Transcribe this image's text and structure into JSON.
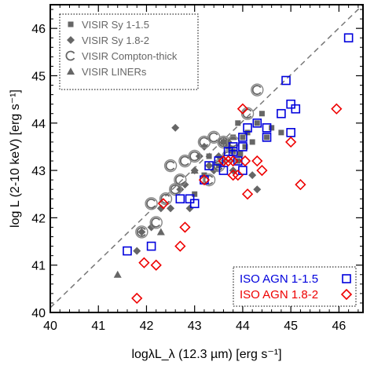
{
  "chart_data": {
    "type": "scatter",
    "title": "",
    "xlabel": "logλL_λ (12.3 µm) [erg s⁻¹]",
    "ylabel": "log L (2-10 keV) [erg s⁻¹]",
    "xlim": [
      40,
      46.5
    ],
    "ylim": [
      40,
      46.5
    ],
    "xticks": [
      "40",
      "41",
      "42",
      "43",
      "44",
      "45",
      "46"
    ],
    "yticks": [
      "40",
      "41",
      "42",
      "43",
      "44",
      "45",
      "46"
    ],
    "grid": false,
    "legends": [
      {
        "placement": "top-left",
        "entries": [
          "VISIR Sy 1-1.5",
          "VISIR Sy 1.8-2",
          "VISIR Compton-thick",
          "VISIR LINERs"
        ]
      },
      {
        "placement": "bottom-right",
        "entries": [
          "ISO AGN 1-1.5",
          "ISO AGN 1.8-2"
        ]
      }
    ],
    "colors": {
      "iso_type1": "#0000dd",
      "iso_type2": "#ee0000",
      "visir": "#666666",
      "fit_line": "#777777"
    },
    "fit_line": {
      "x": [
        40,
        46.5
      ],
      "y": [
        40.1,
        46.5
      ]
    },
    "series": [
      {
        "name": "VISIR Sy 1-1.5",
        "marker": "square",
        "points": [
          [
            43.0,
            42.5
          ],
          [
            43.2,
            42.9
          ],
          [
            43.3,
            43.3
          ],
          [
            43.5,
            43.1
          ],
          [
            43.6,
            43.6
          ],
          [
            43.7,
            43.5
          ],
          [
            43.8,
            43.4
          ],
          [
            43.9,
            43.2
          ],
          [
            44.1,
            43.8
          ],
          [
            44.2,
            43.6
          ],
          [
            44.3,
            44.0
          ],
          [
            44.4,
            44.2
          ],
          [
            44.6,
            43.9
          ],
          [
            44.8,
            43.8
          ],
          [
            44.5,
            43.7
          ],
          [
            44.0,
            43.7
          ],
          [
            43.8,
            43.7
          ],
          [
            43.9,
            44.0
          ],
          [
            44.05,
            43.5
          ],
          [
            43.95,
            43.35
          ]
        ]
      },
      {
        "name": "VISIR Sy 1.8-2",
        "marker": "diamond",
        "points": [
          [
            41.8,
            41.3
          ],
          [
            41.9,
            41.7
          ],
          [
            42.1,
            41.8
          ],
          [
            42.3,
            42.2
          ],
          [
            42.5,
            42.2
          ],
          [
            42.7,
            42.6
          ],
          [
            42.8,
            42.7
          ],
          [
            43.0,
            43.0
          ],
          [
            43.1,
            43.3
          ],
          [
            43.2,
            43.5
          ],
          [
            43.3,
            43.1
          ],
          [
            43.5,
            43.3
          ],
          [
            43.6,
            43.6
          ],
          [
            43.8,
            43.0
          ],
          [
            44.2,
            42.9
          ],
          [
            44.3,
            42.6
          ],
          [
            43.4,
            43.0
          ],
          [
            42.6,
            43.9
          ],
          [
            42.9,
            42.2
          ],
          [
            43.7,
            43.6
          ]
        ]
      },
      {
        "name": "VISIR Compton-thick",
        "marker": "C",
        "points": [
          [
            41.9,
            41.7
          ],
          [
            42.1,
            42.3
          ],
          [
            42.4,
            42.4
          ],
          [
            42.6,
            42.6
          ],
          [
            42.7,
            42.8
          ],
          [
            42.8,
            43.2
          ],
          [
            43.0,
            43.3
          ],
          [
            43.2,
            43.6
          ],
          [
            43.4,
            43.7
          ],
          [
            43.6,
            43.6
          ],
          [
            43.8,
            43.6
          ],
          [
            44.1,
            44.2
          ],
          [
            44.3,
            44.7
          ],
          [
            43.3,
            42.8
          ],
          [
            42.5,
            43.1
          ],
          [
            42.2,
            41.9
          ],
          [
            43.5,
            43.1
          ],
          [
            43.7,
            43.3
          ]
        ]
      },
      {
        "name": "VISIR LINERs",
        "marker": "triangle",
        "points": [
          [
            41.4,
            40.8
          ],
          [
            42.3,
            41.7
          ],
          [
            43.0,
            43.0
          ]
        ]
      },
      {
        "name": "ISO AGN 1-1.5",
        "marker": "open-square",
        "points": [
          [
            41.6,
            41.3
          ],
          [
            42.1,
            41.4
          ],
          [
            42.7,
            42.4
          ],
          [
            42.9,
            42.4
          ],
          [
            43.0,
            42.3
          ],
          [
            43.2,
            42.8
          ],
          [
            43.3,
            43.1
          ],
          [
            43.5,
            43.2
          ],
          [
            43.6,
            43.0
          ],
          [
            43.7,
            43.4
          ],
          [
            43.8,
            43.4
          ],
          [
            43.9,
            43.2
          ],
          [
            44.0,
            43.5
          ],
          [
            44.0,
            43.0
          ],
          [
            44.0,
            43.7
          ],
          [
            44.1,
            43.9
          ],
          [
            44.3,
            44.0
          ],
          [
            44.5,
            43.9
          ],
          [
            44.5,
            43.7
          ],
          [
            44.8,
            44.2
          ],
          [
            44.9,
            44.9
          ],
          [
            45.0,
            44.4
          ],
          [
            45.0,
            43.8
          ],
          [
            45.1,
            44.3
          ],
          [
            46.2,
            45.8
          ],
          [
            43.8,
            43.5
          ]
        ]
      },
      {
        "name": "ISO AGN 1.8-2",
        "marker": "open-diamond",
        "points": [
          [
            41.8,
            40.3
          ],
          [
            41.95,
            41.05
          ],
          [
            42.2,
            41.0
          ],
          [
            42.35,
            42.3
          ],
          [
            42.7,
            41.4
          ],
          [
            42.8,
            41.8
          ],
          [
            43.2,
            42.8
          ],
          [
            43.6,
            43.2
          ],
          [
            43.7,
            43.2
          ],
          [
            43.8,
            43.2
          ],
          [
            43.8,
            42.9
          ],
          [
            43.9,
            42.9
          ],
          [
            44.0,
            44.3
          ],
          [
            44.05,
            43.2
          ],
          [
            44.1,
            42.5
          ],
          [
            44.4,
            43.0
          ],
          [
            45.0,
            43.6
          ],
          [
            45.2,
            42.7
          ],
          [
            45.95,
            44.3
          ],
          [
            44.3,
            43.2
          ]
        ]
      }
    ]
  }
}
